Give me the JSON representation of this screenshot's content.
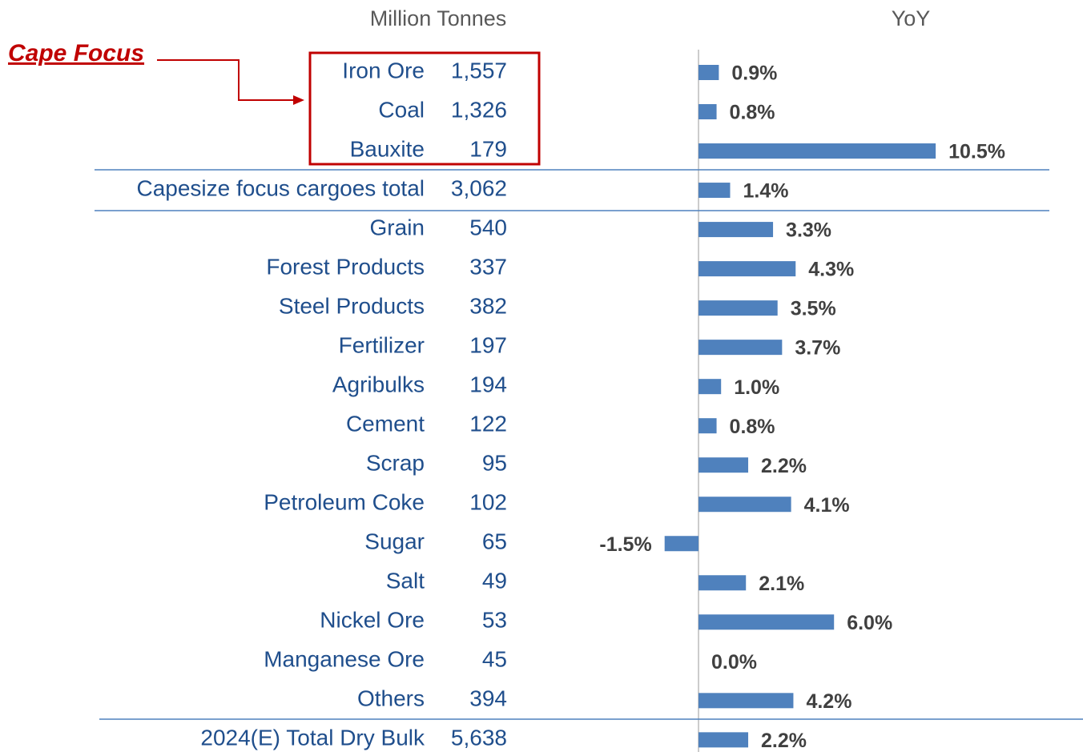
{
  "chart_data": {
    "type": "bar",
    "headers": [
      "Million Tonnes",
      "YoY"
    ],
    "annotation": "Cape Focus",
    "categories": [
      "Iron Ore",
      "Coal",
      "Bauxite",
      "Capesize focus cargoes total",
      "Grain",
      "Forest Products",
      "Steel Products",
      "Fertilizer",
      "Agribulks",
      "Cement",
      "Scrap",
      "Petroleum Coke",
      "Sugar",
      "Salt",
      "Nickel Ore",
      "Manganese Ore",
      "Others",
      "2024(E) Total Dry Bulk"
    ],
    "tonnes": [
      {
        "value": 1557,
        "label": "1,557"
      },
      {
        "value": 1326,
        "label": "1,326"
      },
      179,
      {
        "value": 3062,
        "label": "3,062"
      },
      540,
      337,
      382,
      197,
      194,
      122,
      95,
      102,
      65,
      49,
      53,
      45,
      394,
      {
        "value": 5638,
        "label": "5,638"
      }
    ],
    "values": [
      0.9,
      0.8,
      10.5,
      1.4,
      3.3,
      4.3,
      3.5,
      3.7,
      1.0,
      0.8,
      2.2,
      4.1,
      -1.5,
      2.1,
      6.0,
      0.0,
      4.2,
      2.2
    ],
    "value_labels": [
      "0.9%",
      "0.8%",
      "10.5%",
      "1.4%",
      "3.3%",
      "4.3%",
      "3.5%",
      "3.7%",
      "1.0%",
      "0.8%",
      "2.2%",
      "4.1%",
      "-1.5%",
      "2.1%",
      "6.0%",
      "0.0%",
      "4.2%",
      "2.2%"
    ],
    "color": "#4f81bd"
  }
}
